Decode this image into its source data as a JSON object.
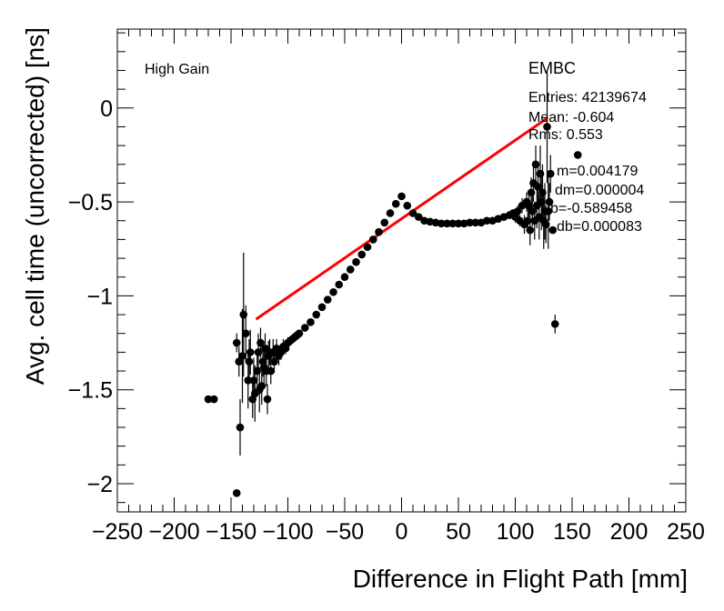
{
  "chart_data": {
    "type": "scatter",
    "title": "",
    "xlabel": "Difference in Flight Path [mm]",
    "ylabel": "Avg. cell time (uncorrected) [ns]",
    "xlim": [
      -250,
      250
    ],
    "ylim": [
      -2.15,
      0.42
    ],
    "xticks": [
      -250,
      -200,
      -150,
      -100,
      -50,
      0,
      50,
      100,
      150,
      200,
      250
    ],
    "xtick_labels": [
      "−250",
      "−200",
      "−150",
      "−100",
      "−50",
      "0",
      "50",
      "100",
      "150",
      "200",
      "250"
    ],
    "yticks": [
      0,
      -0.5,
      -1,
      -1.5,
      -2
    ],
    "ytick_labels": [
      "0",
      "−0.5",
      "−1",
      "−1.5",
      "−2"
    ],
    "annotations": {
      "gain_label": "High Gain",
      "region_label": "EMBC",
      "entries": "Entries: 42139674",
      "mean": "Mean: -0.604",
      "rms": "Rms: 0.553",
      "m": "m=0.004179",
      "dm": "dm=0.000004",
      "b": "b=-0.589458",
      "db": "db=0.000083"
    },
    "series": [
      {
        "name": "data",
        "color": "#000000",
        "points": [
          [
            -170,
            -1.55,
            0
          ],
          [
            -165,
            -1.55,
            0
          ],
          [
            -145,
            -2.05,
            0
          ],
          [
            -145,
            -1.25,
            0.05
          ],
          [
            -143,
            -1.35,
            0.08
          ],
          [
            -142,
            -1.7,
            0.15
          ],
          [
            -140,
            -1.32,
            0.25
          ],
          [
            -139,
            -1.1,
            0.33
          ],
          [
            -137,
            -1.2,
            0.15
          ],
          [
            -135,
            -1.45,
            0.15
          ],
          [
            -134,
            -1.35,
            0.12
          ],
          [
            -133,
            -1.3,
            0.12
          ],
          [
            -131,
            -1.55,
            0.1
          ],
          [
            -130,
            -1.45,
            0.12
          ],
          [
            -129,
            -1.52,
            0.15
          ],
          [
            -127,
            -1.4,
            0.1
          ],
          [
            -126,
            -1.3,
            0.1
          ],
          [
            -125,
            -1.5,
            0.12
          ],
          [
            -124,
            -1.25,
            0.08
          ],
          [
            -123,
            -1.48,
            0.1
          ],
          [
            -122,
            -1.35,
            0.08
          ],
          [
            -121,
            -1.38,
            0.1
          ],
          [
            -120,
            -1.28,
            0.08
          ],
          [
            -119,
            -1.4,
            0.08
          ],
          [
            -118,
            -1.55,
            0.08
          ],
          [
            -117,
            -1.32,
            0.08
          ],
          [
            -116,
            -1.3,
            0.07
          ],
          [
            -115,
            -1.4,
            0.07
          ],
          [
            -113,
            -1.3,
            0.07
          ],
          [
            -112,
            -1.35,
            0.06
          ],
          [
            -110,
            -1.28,
            0.05
          ],
          [
            -108,
            -1.32,
            0.05
          ],
          [
            -106,
            -1.3,
            0.04
          ],
          [
            -104,
            -1.27,
            0.04
          ],
          [
            -102,
            -1.28,
            0.03
          ],
          [
            -100,
            -1.25,
            0.03
          ],
          [
            -98,
            -1.24,
            0.02
          ],
          [
            -96,
            -1.23,
            0.02
          ],
          [
            -94,
            -1.22,
            0.02
          ],
          [
            -92,
            -1.21,
            0.01
          ],
          [
            -90,
            -1.2,
            0.01
          ],
          [
            -85,
            -1.17,
            0
          ],
          [
            -80,
            -1.14,
            0
          ],
          [
            -75,
            -1.1,
            0
          ],
          [
            -70,
            -1.06,
            0
          ],
          [
            -65,
            -1.02,
            0
          ],
          [
            -60,
            -0.98,
            0
          ],
          [
            -55,
            -0.94,
            0
          ],
          [
            -50,
            -0.9,
            0
          ],
          [
            -45,
            -0.86,
            0
          ],
          [
            -40,
            -0.82,
            0
          ],
          [
            -35,
            -0.78,
            0
          ],
          [
            -30,
            -0.74,
            0
          ],
          [
            -25,
            -0.7,
            0
          ],
          [
            -20,
            -0.66,
            0
          ],
          [
            -15,
            -0.61,
            0
          ],
          [
            -10,
            -0.56,
            0
          ],
          [
            -5,
            -0.51,
            0
          ],
          [
            0,
            -0.47,
            0
          ],
          [
            5,
            -0.52,
            0
          ],
          [
            10,
            -0.56,
            0
          ],
          [
            15,
            -0.58,
            0
          ],
          [
            20,
            -0.6,
            0
          ],
          [
            25,
            -0.605,
            0
          ],
          [
            30,
            -0.61,
            0
          ],
          [
            35,
            -0.615,
            0
          ],
          [
            40,
            -0.615,
            0
          ],
          [
            45,
            -0.615,
            0
          ],
          [
            50,
            -0.615,
            0
          ],
          [
            55,
            -0.615,
            0
          ],
          [
            60,
            -0.61,
            0
          ],
          [
            65,
            -0.61,
            0
          ],
          [
            70,
            -0.61,
            0
          ],
          [
            75,
            -0.6,
            0
          ],
          [
            80,
            -0.6,
            0.01
          ],
          [
            85,
            -0.59,
            0.01
          ],
          [
            90,
            -0.58,
            0.02
          ],
          [
            95,
            -0.57,
            0.02
          ],
          [
            98,
            -0.56,
            0.02
          ],
          [
            100,
            -0.58,
            0.03
          ],
          [
            102,
            -0.55,
            0.03
          ],
          [
            104,
            -0.6,
            0.03
          ],
          [
            106,
            -0.52,
            0.04
          ],
          [
            108,
            -0.62,
            0.05
          ],
          [
            110,
            -0.5,
            0.05
          ],
          [
            111,
            -0.6,
            0.06
          ],
          [
            112,
            -0.52,
            0.06
          ],
          [
            113,
            -0.65,
            0.08
          ],
          [
            114,
            -0.45,
            0.08
          ],
          [
            115,
            -0.55,
            0.08
          ],
          [
            116,
            -0.4,
            0.1
          ],
          [
            117,
            -0.6,
            0.1
          ],
          [
            118,
            -0.3,
            0.1
          ],
          [
            119,
            -0.52,
            0.12
          ],
          [
            120,
            -0.42,
            0.12
          ],
          [
            121,
            -0.58,
            0.12
          ],
          [
            122,
            -0.35,
            0.15
          ],
          [
            123,
            -0.5,
            0.15
          ],
          [
            124,
            -0.45,
            0.15
          ],
          [
            125,
            -0.6,
            0.15
          ],
          [
            126,
            -0.55,
            0.15
          ],
          [
            127,
            -0.62,
            0.1
          ],
          [
            128,
            -0.1,
            0.3
          ],
          [
            129,
            -0.55,
            0.2
          ],
          [
            130,
            -0.5,
            0.1
          ],
          [
            131,
            -0.35,
            0.1
          ],
          [
            133,
            -0.65,
            0
          ],
          [
            135,
            -1.15,
            0.05
          ],
          [
            155,
            -0.25,
            0
          ]
        ]
      },
      {
        "name": "linear fit",
        "color": "#ff0000",
        "x_range": [
          -128,
          128
        ],
        "slope": 0.004179,
        "intercept": -0.589458
      }
    ]
  }
}
